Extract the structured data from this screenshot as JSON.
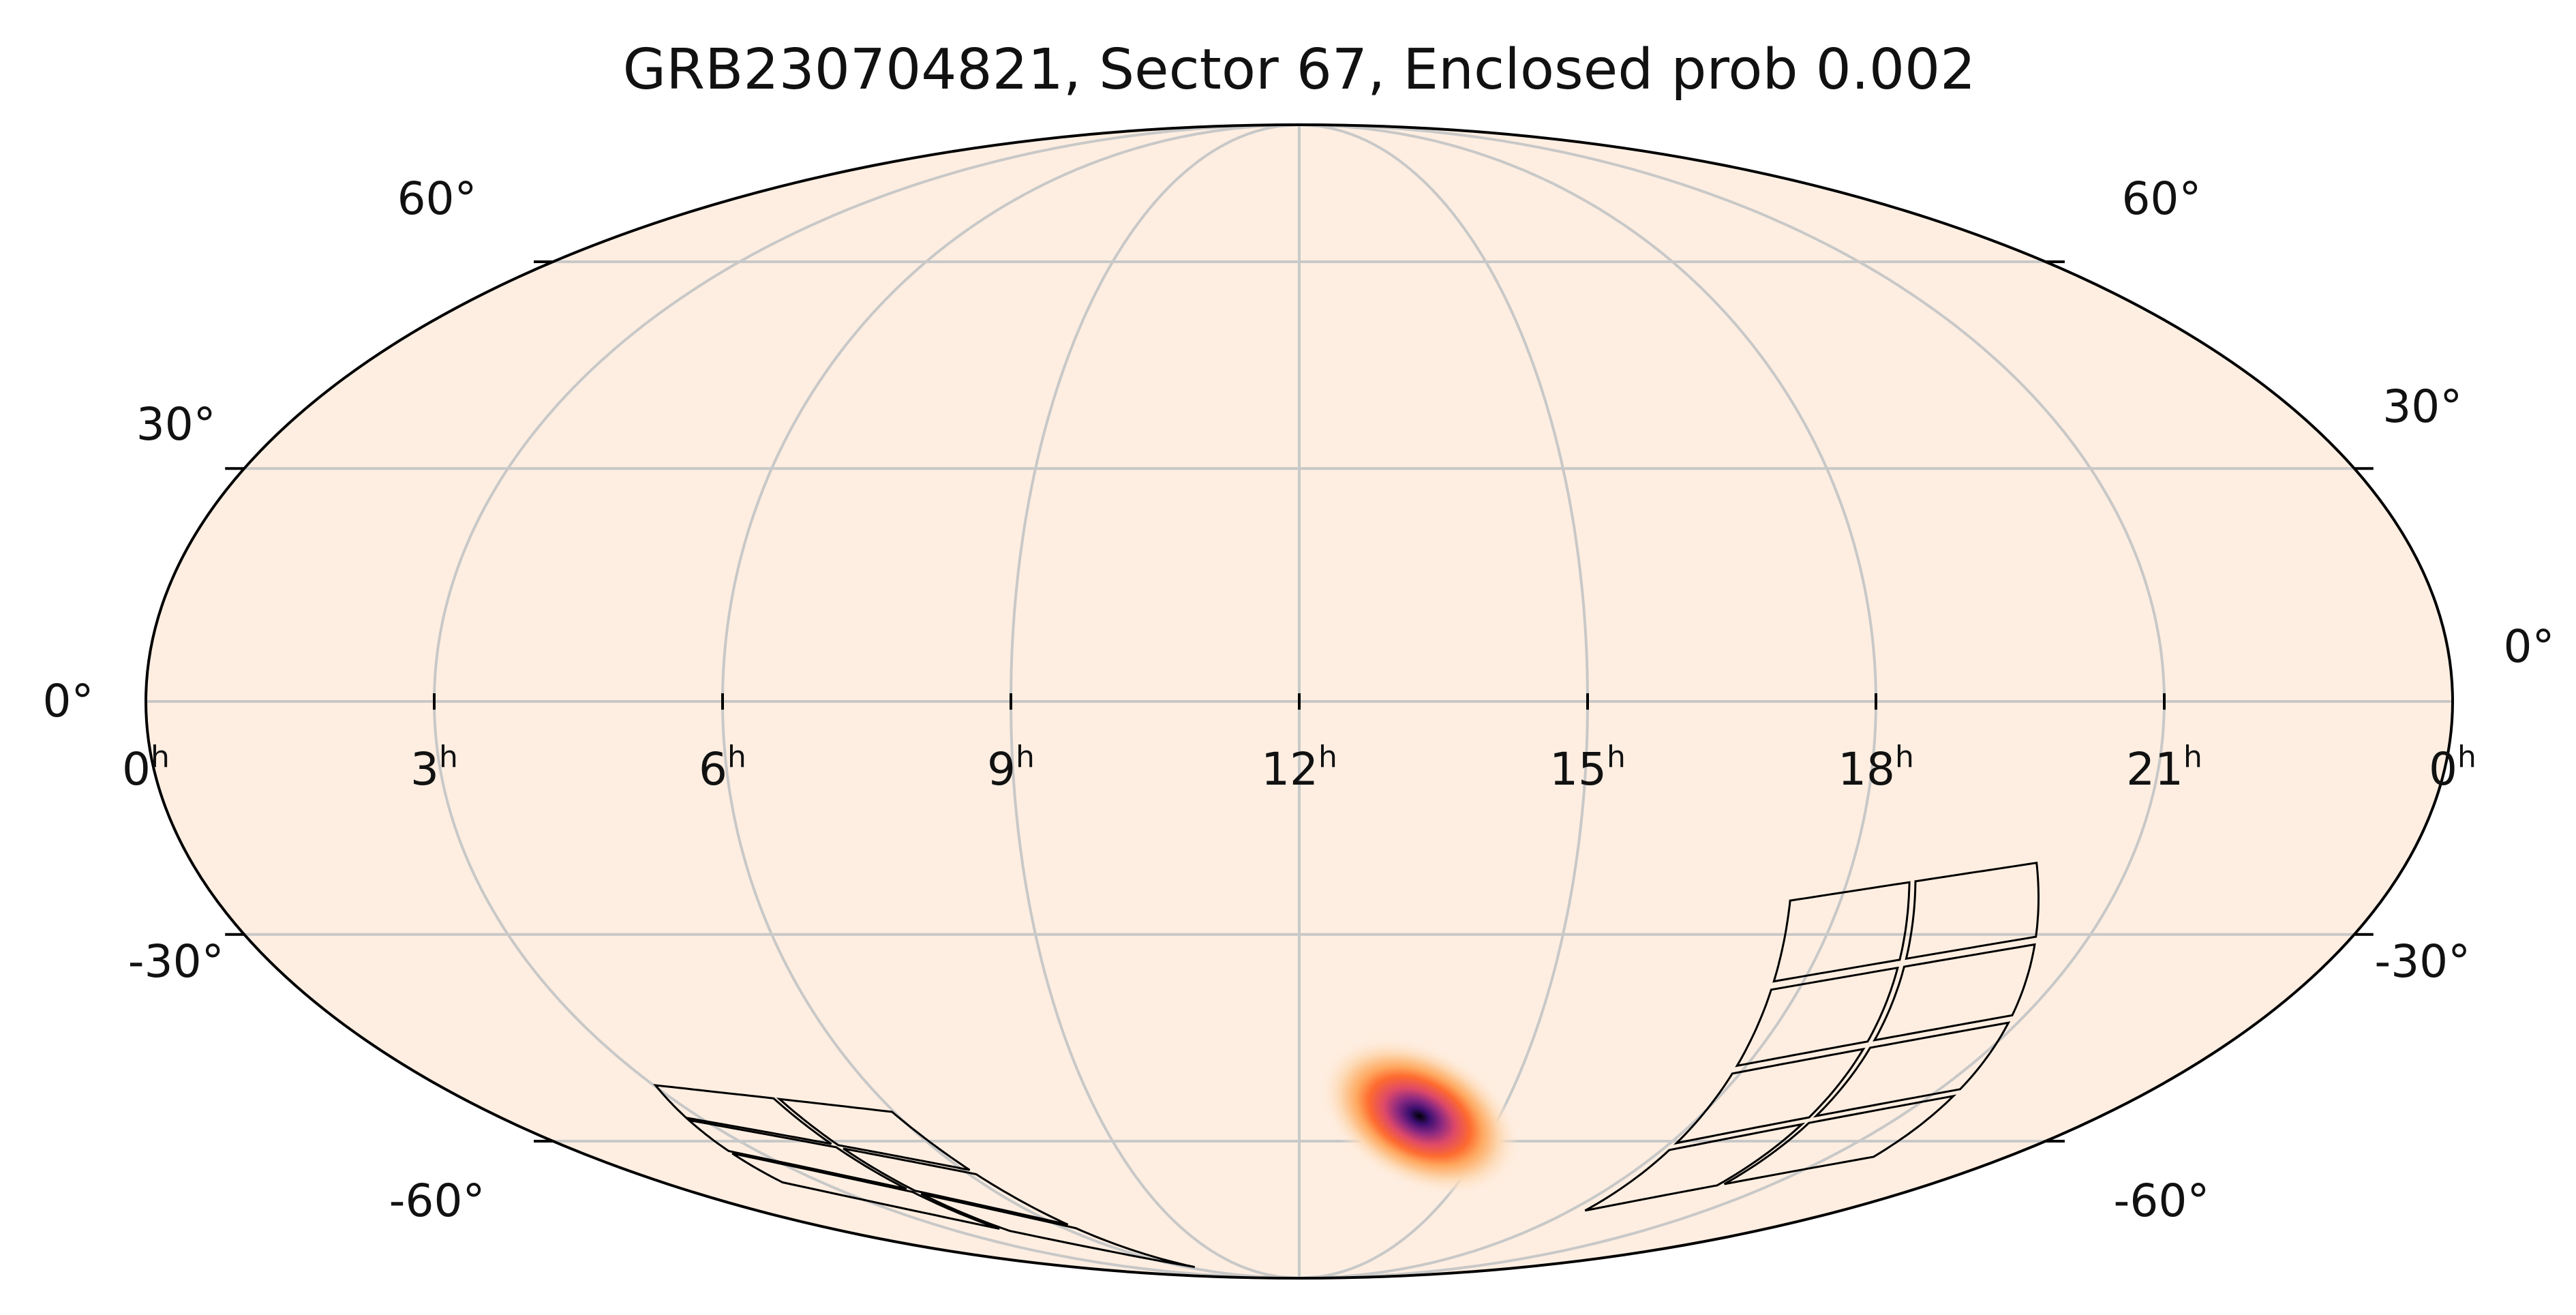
{
  "chart_data": {
    "type": "heatmap",
    "projection": "mollweide",
    "title": "GRB230704821, Sector 67, Enclosed prob 0.002",
    "grid": true,
    "colormap": "magma_r",
    "ra_ticks": [
      {
        "hours": 0,
        "label": "0",
        "unit": "h",
        "position": "left-edge"
      },
      {
        "hours": 21,
        "label": "21",
        "unit": "h"
      },
      {
        "hours": 18,
        "label": "18",
        "unit": "h"
      },
      {
        "hours": 15,
        "label": "15",
        "unit": "h"
      },
      {
        "hours": 12,
        "label": "12",
        "unit": "h"
      },
      {
        "hours": 9,
        "label": "9",
        "unit": "h"
      },
      {
        "hours": 6,
        "label": "6",
        "unit": "h"
      },
      {
        "hours": 3,
        "label": "3",
        "unit": "h"
      },
      {
        "hours": 0,
        "label": "0",
        "unit": "h",
        "position": "right-edge"
      }
    ],
    "dec_ticks": [
      {
        "deg": 60,
        "label": "60°"
      },
      {
        "deg": 30,
        "label": "30°"
      },
      {
        "deg": 0,
        "label": "0°"
      },
      {
        "deg": -30,
        "label": "-30°"
      },
      {
        "deg": -60,
        "label": "-60°"
      }
    ],
    "probability_peak": {
      "ra_hours": 13.8,
      "dec_deg": -56,
      "sigma_major_deg": 7,
      "sigma_minor_deg": 4.5
    },
    "tess_sector_footprints": [
      {
        "name": "ccd-group-a",
        "corners_ra_h_dec": [
          [
            20.0,
            -20
          ],
          [
            17.4,
            -25
          ],
          [
            18.3,
            -73
          ],
          [
            21.8,
            -63
          ]
        ],
        "rows": 4,
        "cols": 2
      },
      {
        "name": "ccd-group-b",
        "corners_ra_h_dec": [
          [
            6.0,
            -55
          ],
          [
            3.0,
            -51
          ],
          [
            2.2,
            -67
          ],
          [
            6.5,
            -86
          ]
        ],
        "rows": 3,
        "cols": 2
      }
    ]
  }
}
